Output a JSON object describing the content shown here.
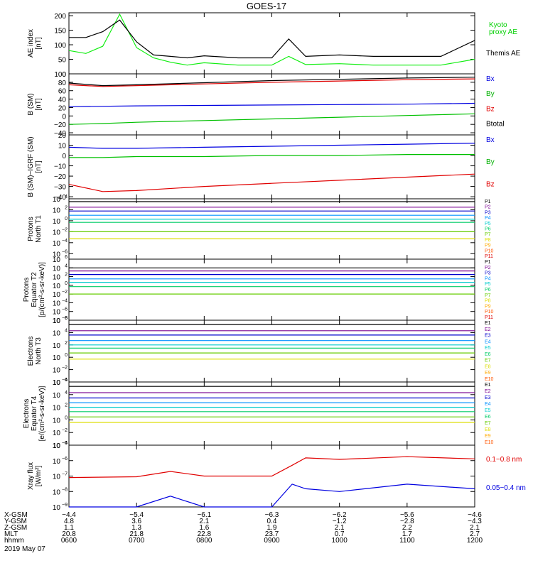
{
  "title": "GOES-17",
  "date": "2019 May 07",
  "colors": {
    "black": "#000000",
    "red": "#e00000",
    "green": "#00d000",
    "blue": "#0000e0",
    "light_green": "#22dd22",
    "p_colors": [
      "#000000",
      "#7a0090",
      "#0000cc",
      "#0090ff",
      "#00cccc",
      "#00cc66",
      "#66cc00",
      "#dddd00",
      "#ffaa00",
      "#ff5500",
      "#dd0000"
    ]
  },
  "panels": [
    {
      "id": "ae",
      "ylabel": [
        "AE index",
        "[nT]"
      ],
      "ylim": [
        0,
        210
      ],
      "yticks": [
        0,
        50,
        100,
        150,
        200
      ],
      "legend": [
        {
          "text": "Kyoto",
          "color": "#00d000"
        },
        {
          "text": "proxy AE",
          "color": "#00d000"
        },
        {
          "text": "Themis AE",
          "color": "#000000"
        }
      ]
    },
    {
      "id": "bsm",
      "ylabel": [
        "B (SM)",
        "[nT]"
      ],
      "ylim": [
        -45,
        100
      ],
      "yticks": [
        -40,
        -20,
        0,
        20,
        40,
        60,
        80,
        100
      ],
      "legend": [
        {
          "text": "Bx",
          "color": "#0000e0"
        },
        {
          "text": "By",
          "color": "#00b000"
        },
        {
          "text": "Bz",
          "color": "#e00000"
        },
        {
          "text": "Btotal",
          "color": "#000000"
        }
      ]
    },
    {
      "id": "igrf",
      "ylabel": [
        "B (SM)−IGRF (SM)",
        "[nT]"
      ],
      "ylim": [
        -42,
        20
      ],
      "yticks": [
        -40,
        -30,
        -20,
        -10,
        0,
        10,
        20
      ],
      "legend": [
        {
          "text": "Bx",
          "color": "#0000e0"
        },
        {
          "text": "By",
          "color": "#00b000"
        },
        {
          "text": "Bz",
          "color": "#e00000"
        }
      ]
    },
    {
      "id": "pnorth",
      "ylabel": [
        "Protons",
        "North T1"
      ],
      "log": true,
      "exp_range": [
        -7,
        4
      ],
      "tick_exps": [
        -6,
        -4,
        -2,
        0,
        2,
        4
      ],
      "channels": [
        "P1",
        "P2",
        "P3",
        "P4",
        "P5",
        "P6",
        "P7",
        "P8",
        "P9",
        "P10",
        "P11"
      ]
    },
    {
      "id": "peq",
      "ylabel": [
        "Protons",
        "Equator T2",
        "[p/(cm²-s-sr-keV)]"
      ],
      "log": true,
      "exp_range": [
        -8,
        6
      ],
      "tick_exps": [
        -8,
        -6,
        -4,
        -2,
        0,
        2,
        4,
        6
      ],
      "channels": [
        "P1",
        "P2",
        "P3",
        "P4",
        "P5",
        "P6",
        "P7",
        "P8",
        "P9",
        "P10",
        "P11"
      ]
    },
    {
      "id": "enorth",
      "ylabel": [
        "Electrons",
        "North T3"
      ],
      "log": true,
      "exp_range": [
        -4,
        6
      ],
      "tick_exps": [
        -4,
        -2,
        0,
        2,
        4,
        6
      ],
      "channels": [
        "E1",
        "E2",
        "E3",
        "E4",
        "E5",
        "E6",
        "E7",
        "E8",
        "E9",
        "E10"
      ]
    },
    {
      "id": "eeq",
      "ylabel": [
        "Electrons",
        "Equator T4",
        "[e/(cm²-s-sr-keV)]"
      ],
      "log": true,
      "exp_range": [
        -4,
        6
      ],
      "tick_exps": [
        -4,
        -2,
        0,
        2,
        4,
        6
      ],
      "channels": [
        "E1",
        "E2",
        "E3",
        "E4",
        "E5",
        "E6",
        "E7",
        "E8",
        "E9",
        "E10"
      ]
    },
    {
      "id": "xray",
      "ylabel": [
        "Xray flux",
        "[W/m²]"
      ],
      "log": true,
      "exp_range": [
        -9,
        -5
      ],
      "tick_exps": [
        -9,
        -8,
        -7,
        -6,
        -5
      ],
      "legend": [
        {
          "text": "0.1−0.8 nm",
          "color": "#e00000"
        },
        {
          "text": "0.05−0.4 nm",
          "color": "#0000e0"
        }
      ]
    }
  ],
  "ephemeris": {
    "row_labels": [
      "X-GSM",
      "Y-GSM",
      "Z-GSM",
      "MLT",
      "hhmm"
    ],
    "columns": [
      [
        "-4.4",
        "4.8",
        "1.1",
        "20.8",
        "0600"
      ],
      [
        "-5.4",
        "3.6",
        "1.3",
        "21.8",
        "0700"
      ],
      [
        "-6.1",
        "2.1",
        "1.6",
        "22.8",
        "0800"
      ],
      [
        "-6.3",
        "0.4",
        "1.9",
        "23.7",
        "0900"
      ],
      [
        "-6.2",
        "-1.2",
        "2.1",
        "0.7",
        "1000"
      ],
      [
        "-5.6",
        "-2.8",
        "2.2",
        "1.7",
        "1100"
      ],
      [
        "-4.6",
        "-4.3",
        "2.1",
        "2.7",
        "1200"
      ]
    ]
  },
  "chart_data": [
    {
      "type": "line",
      "title": "AE index",
      "x": [
        0,
        0.25,
        0.5,
        0.75,
        1.0,
        1.25,
        1.5,
        1.75,
        2.0,
        2.5,
        3.0,
        3.25,
        3.5,
        4.0,
        4.5,
        5.0,
        5.5,
        6.0
      ],
      "series": [
        {
          "name": "Kyoto proxy AE",
          "values": [
            80,
            70,
            95,
            205,
            90,
            55,
            40,
            30,
            38,
            30,
            30,
            60,
            32,
            35,
            30,
            30,
            30,
            50
          ]
        },
        {
          "name": "Themis AE",
          "values": [
            125,
            125,
            145,
            185,
            110,
            65,
            60,
            55,
            62,
            55,
            55,
            120,
            60,
            65,
            60,
            60,
            60,
            115
          ]
        }
      ]
    },
    {
      "type": "line",
      "title": "B (SM)",
      "x": [
        0,
        0.5,
        1,
        2,
        3,
        4,
        5,
        6
      ],
      "series": [
        {
          "name": "Bx",
          "values": [
            22,
            23,
            24,
            25,
            26,
            27,
            28,
            30
          ]
        },
        {
          "name": "By",
          "values": [
            -20,
            -18,
            -15,
            -11,
            -7,
            -3,
            1,
            5
          ]
        },
        {
          "name": "Bz",
          "values": [
            74,
            70,
            72,
            76,
            80,
            83,
            86,
            88
          ]
        },
        {
          "name": "Btotal",
          "values": [
            78,
            72,
            74,
            79,
            84,
            87,
            90,
            92
          ]
        }
      ]
    },
    {
      "type": "line",
      "title": "B (SM)-IGRF (SM)",
      "x": [
        0,
        0.5,
        1,
        2,
        3,
        4,
        5,
        6
      ],
      "series": [
        {
          "name": "Bx",
          "values": [
            8,
            7,
            7,
            8,
            9,
            10,
            11,
            12
          ]
        },
        {
          "name": "By",
          "values": [
            -2,
            -2,
            -1,
            -1,
            0,
            0,
            1,
            1
          ]
        },
        {
          "name": "Bz",
          "values": [
            -28,
            -35,
            -34,
            -30,
            -27,
            -24,
            -21,
            -18
          ]
        }
      ]
    },
    {
      "type": "line",
      "title": "Protons North T1",
      "x": [
        0,
        6
      ],
      "series": [
        {
          "name": "P1",
          "values": [
            3000,
            3000
          ]
        },
        {
          "name": "P2",
          "values": [
            300,
            300
          ]
        },
        {
          "name": "P3",
          "values": [
            60,
            60
          ]
        },
        {
          "name": "P4",
          "values": [
            10,
            10
          ]
        },
        {
          "name": "P5",
          "values": [
            2,
            2
          ]
        },
        {
          "name": "P6",
          "values": [
            0.5,
            0.5
          ]
        },
        {
          "name": "P7",
          "values": [
            0.01,
            0.01
          ]
        },
        {
          "name": "P8",
          "values": [
            0.0005,
            0.0005
          ]
        }
      ]
    },
    {
      "type": "line",
      "title": "Protons Equator T2",
      "x": [
        0,
        6
      ],
      "series": [
        {
          "name": "P1",
          "values": [
            10000,
            10000
          ]
        },
        {
          "name": "P2",
          "values": [
            2000,
            2000
          ]
        },
        {
          "name": "P3",
          "values": [
            300,
            300
          ]
        },
        {
          "name": "P4",
          "values": [
            30,
            30
          ]
        },
        {
          "name": "P5",
          "values": [
            5,
            5
          ]
        },
        {
          "name": "P6",
          "values": [
            0.5,
            0.5
          ]
        },
        {
          "name": "P7",
          "values": [
            0.01,
            0.01
          ]
        }
      ]
    },
    {
      "type": "line",
      "title": "Electrons North T3",
      "x": [
        0,
        6
      ],
      "series": [
        {
          "name": "E1",
          "values": [
            200000,
            200000
          ]
        },
        {
          "name": "E2",
          "values": [
            20000,
            20000
          ]
        },
        {
          "name": "E3",
          "values": [
            4000,
            4000
          ]
        },
        {
          "name": "E4",
          "values": [
            500,
            500
          ]
        },
        {
          "name": "E5",
          "values": [
            100,
            100
          ]
        },
        {
          "name": "E6",
          "values": [
            30,
            30
          ]
        },
        {
          "name": "E7",
          "values": [
            5,
            5
          ]
        },
        {
          "name": "E8",
          "values": [
            0.5,
            0.5
          ]
        }
      ]
    },
    {
      "type": "line",
      "title": "Electrons Equator T4",
      "x": [
        0,
        6
      ],
      "series": [
        {
          "name": "E1",
          "values": [
            200000,
            200000
          ]
        },
        {
          "name": "E2",
          "values": [
            20000,
            20000
          ]
        },
        {
          "name": "E3",
          "values": [
            3000,
            3000
          ]
        },
        {
          "name": "E4",
          "values": [
            500,
            500
          ]
        },
        {
          "name": "E5",
          "values": [
            100,
            100
          ]
        },
        {
          "name": "E6",
          "values": [
            20,
            20
          ]
        },
        {
          "name": "E7",
          "values": [
            3,
            3
          ]
        },
        {
          "name": "E8",
          "values": [
            0.4,
            0.4
          ]
        }
      ]
    },
    {
      "type": "line",
      "title": "Xray flux",
      "x": [
        0,
        1,
        1.5,
        2,
        3,
        3.3,
        3.5,
        4,
        5,
        6
      ],
      "series": [
        {
          "name": "0.1-0.8 nm",
          "values": [
            8e-08,
            9e-08,
            2e-07,
            1e-07,
            1e-07,
            5e-07,
            1.5e-06,
            1.2e-06,
            1.8e-06,
            1.3e-06
          ]
        },
        {
          "name": "0.05-0.4 nm",
          "values": [
            1e-09,
            1e-09,
            5e-09,
            1e-09,
            1e-09,
            3e-08,
            1.5e-08,
            1e-08,
            3e-08,
            1.5e-08
          ]
        }
      ]
    }
  ]
}
